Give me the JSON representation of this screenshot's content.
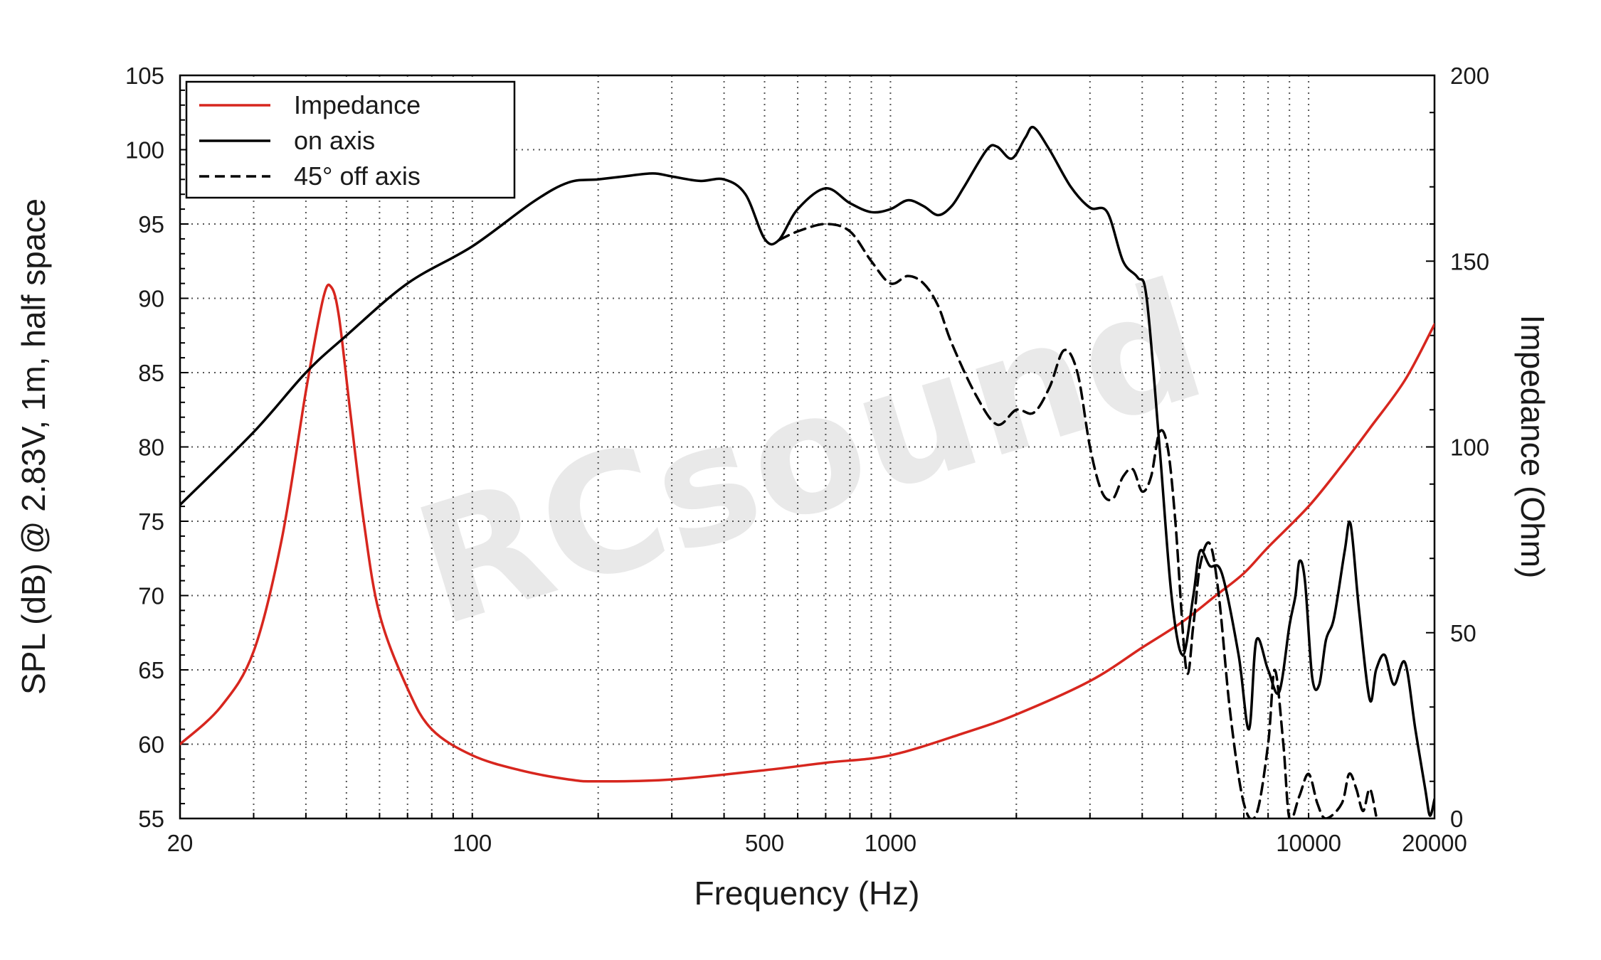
{
  "watermark_text": "RCsound",
  "colors": {
    "impedance": "#d7261e",
    "spl": "#000000",
    "grid": "#555555"
  },
  "chart_data": {
    "type": "line",
    "xlabel": "Frequency (Hz)",
    "ylabel_left": "SPL (dB) @ 2.83V, 1m, half space",
    "ylabel_right": "Impedance (Ohm)",
    "x_scale": "log",
    "xlim": [
      20,
      20000
    ],
    "ylim_left": [
      55,
      105
    ],
    "ylim_right": [
      0,
      200
    ],
    "x_ticks": [
      {
        "value": 20,
        "label": "20"
      },
      {
        "value": 100,
        "label": "100"
      },
      {
        "value": 500,
        "label": "500"
      },
      {
        "value": 1000,
        "label": "1000"
      },
      {
        "value": 10000,
        "label": "10000"
      },
      {
        "value": 20000,
        "label": "20000"
      }
    ],
    "y_ticks_left": [
      55,
      60,
      65,
      70,
      75,
      80,
      85,
      90,
      95,
      100,
      105
    ],
    "y_ticks_right": [
      0,
      50,
      100,
      150,
      200
    ],
    "grid": true,
    "legend_position": "top-left",
    "series": [
      {
        "name": "Impedance",
        "axis": "right",
        "style": "solid",
        "color": "#d7261e",
        "points": [
          [
            20,
            20
          ],
          [
            25,
            30
          ],
          [
            30,
            45
          ],
          [
            35,
            75
          ],
          [
            40,
            115
          ],
          [
            44,
            140
          ],
          [
            46,
            143
          ],
          [
            48,
            135
          ],
          [
            51,
            110
          ],
          [
            55,
            80
          ],
          [
            60,
            55
          ],
          [
            70,
            35
          ],
          [
            80,
            24
          ],
          [
            100,
            17
          ],
          [
            130,
            13
          ],
          [
            170,
            10.5
          ],
          [
            200,
            10
          ],
          [
            300,
            10.5
          ],
          [
            500,
            13
          ],
          [
            700,
            15
          ],
          [
            1000,
            17
          ],
          [
            1500,
            23
          ],
          [
            2000,
            28
          ],
          [
            3000,
            37
          ],
          [
            4000,
            46
          ],
          [
            5000,
            53
          ],
          [
            6000,
            60
          ],
          [
            7000,
            66
          ],
          [
            8000,
            73
          ],
          [
            10000,
            84
          ],
          [
            12000,
            95
          ],
          [
            14000,
            105
          ],
          [
            17000,
            118
          ],
          [
            20000,
            133
          ]
        ]
      },
      {
        "name": "on axis",
        "axis": "left",
        "style": "solid",
        "color": "#000000",
        "points": [
          [
            20,
            76.1
          ],
          [
            30,
            81
          ],
          [
            40,
            85
          ],
          [
            50,
            87.5
          ],
          [
            70,
            91
          ],
          [
            100,
            93.5
          ],
          [
            140,
            96.5
          ],
          [
            170,
            97.8
          ],
          [
            200,
            98
          ],
          [
            230,
            98.2
          ],
          [
            270,
            98.4
          ],
          [
            300,
            98.2
          ],
          [
            350,
            97.9
          ],
          [
            400,
            98
          ],
          [
            450,
            97
          ],
          [
            500,
            94
          ],
          [
            540,
            93.9
          ],
          [
            600,
            96
          ],
          [
            700,
            97.4
          ],
          [
            800,
            96.4
          ],
          [
            900,
            95.8
          ],
          [
            1000,
            96
          ],
          [
            1100,
            96.6
          ],
          [
            1200,
            96.2
          ],
          [
            1300,
            95.6
          ],
          [
            1400,
            96.2
          ],
          [
            1500,
            97.5
          ],
          [
            1700,
            100
          ],
          [
            1800,
            100.2
          ],
          [
            1950,
            99.4
          ],
          [
            2100,
            100.8
          ],
          [
            2200,
            101.5
          ],
          [
            2400,
            100
          ],
          [
            2700,
            97.5
          ],
          [
            3000,
            96.1
          ],
          [
            3300,
            95.8
          ],
          [
            3600,
            92.5
          ],
          [
            3900,
            91.4
          ],
          [
            4100,
            90
          ],
          [
            4400,
            80
          ],
          [
            4700,
            70
          ],
          [
            5000,
            66
          ],
          [
            5300,
            70
          ],
          [
            5500,
            73
          ],
          [
            5800,
            72
          ],
          [
            6200,
            71.5
          ],
          [
            6800,
            66
          ],
          [
            7200,
            61
          ],
          [
            7500,
            67
          ],
          [
            8000,
            65
          ],
          [
            8500,
            63.5
          ],
          [
            9000,
            68
          ],
          [
            9300,
            70
          ],
          [
            9500,
            72.3
          ],
          [
            9800,
            71
          ],
          [
            10200,
            64.5
          ],
          [
            10600,
            64
          ],
          [
            11000,
            67
          ],
          [
            11500,
            68.5
          ],
          [
            12200,
            73
          ],
          [
            12600,
            74.8
          ],
          [
            13200,
            69
          ],
          [
            14000,
            63
          ],
          [
            14500,
            65
          ],
          [
            15200,
            66
          ],
          [
            16000,
            64
          ],
          [
            17000,
            65.5
          ],
          [
            18000,
            61
          ],
          [
            19000,
            57
          ],
          [
            19500,
            55.2
          ],
          [
            20000,
            56.3
          ]
        ]
      },
      {
        "name": "45° off axis",
        "axis": "left",
        "style": "dashed",
        "color": "#000000",
        "points": [
          [
            540,
            93.9
          ],
          [
            600,
            94.5
          ],
          [
            700,
            95
          ],
          [
            800,
            94.5
          ],
          [
            900,
            92.5
          ],
          [
            1000,
            91
          ],
          [
            1100,
            91.5
          ],
          [
            1200,
            91
          ],
          [
            1300,
            89.5
          ],
          [
            1400,
            87
          ],
          [
            1600,
            83.5
          ],
          [
            1800,
            81.5
          ],
          [
            2000,
            82.5
          ],
          [
            2200,
            82.3
          ],
          [
            2400,
            84
          ],
          [
            2600,
            86.5
          ],
          [
            2800,
            85
          ],
          [
            3000,
            80
          ],
          [
            3200,
            77
          ],
          [
            3400,
            76.5
          ],
          [
            3600,
            78
          ],
          [
            3800,
            78.5
          ],
          [
            4000,
            77
          ],
          [
            4200,
            78
          ],
          [
            4400,
            81
          ],
          [
            4600,
            80
          ],
          [
            4800,
            75
          ],
          [
            5100,
            65
          ],
          [
            5300,
            68
          ],
          [
            5500,
            72
          ],
          [
            5800,
            73.5
          ],
          [
            6100,
            70
          ],
          [
            6500,
            62
          ],
          [
            7000,
            56
          ],
          [
            7500,
            55.3
          ],
          [
            8000,
            60
          ],
          [
            8300,
            65
          ],
          [
            8700,
            60
          ],
          [
            9000,
            55
          ],
          [
            9500,
            56.5
          ],
          [
            10000,
            58
          ],
          [
            10500,
            56
          ],
          [
            11000,
            55
          ],
          [
            12000,
            56
          ],
          [
            12500,
            58
          ],
          [
            13000,
            57
          ],
          [
            13500,
            55.5
          ],
          [
            14000,
            57
          ],
          [
            14500,
            55.2
          ]
        ]
      }
    ]
  }
}
